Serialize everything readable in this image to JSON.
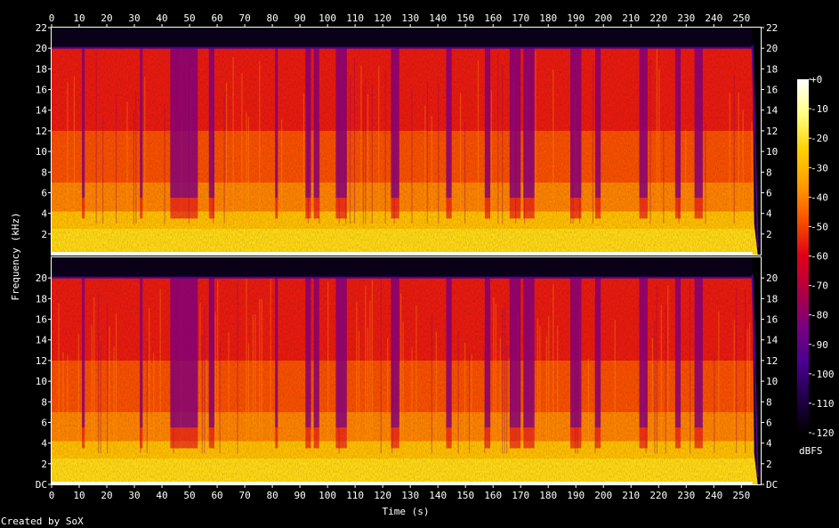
{
  "chart_data": {
    "type": "heatmap",
    "xlabel": "Time (s)",
    "ylabel": "Frequency (kHz)",
    "xlim": [
      0,
      257
    ],
    "ylim": [
      0,
      22
    ],
    "x_ticks": [
      "0",
      "10",
      "20",
      "30",
      "40",
      "50",
      "60",
      "70",
      "80",
      "90",
      "100",
      "110",
      "120",
      "130",
      "140",
      "150",
      "160",
      "170",
      "180",
      "190",
      "200",
      "210",
      "220",
      "230",
      "240",
      "250"
    ],
    "y_ticks_top": [
      "2",
      "4",
      "6",
      "8",
      "10",
      "12",
      "14",
      "16",
      "18",
      "20",
      "22"
    ],
    "y_ticks_bottom": [
      "DC",
      "2",
      "4",
      "6",
      "8",
      "10",
      "12",
      "14",
      "16",
      "18",
      "20"
    ],
    "channels": 2,
    "colorbar": {
      "unit": "dBFS",
      "range": [
        -120,
        0
      ],
      "ticks": [
        "+0",
        "-10",
        "-20",
        "-30",
        "-40",
        "-50",
        "-60",
        "-70",
        "-80",
        "-90",
        "-100",
        "-110",
        "-120"
      ],
      "stops": [
        "#000000",
        "#200048",
        "#4a0090",
        "#7a0080",
        "#b00040",
        "#e00018",
        "#f85000",
        "#ff9c00",
        "#ffd000",
        "#ffff80",
        "#ffffff"
      ]
    },
    "band_level_db": [
      {
        "freq_khz": [
          0,
          2.5
        ],
        "level": -22
      },
      {
        "freq_khz": [
          2.5,
          4.2
        ],
        "level": -28
      },
      {
        "freq_khz": [
          4.2,
          7
        ],
        "level": -40
      },
      {
        "freq_khz": [
          7,
          12
        ],
        "level": -48
      },
      {
        "freq_khz": [
          12,
          20
        ],
        "level": -56
      },
      {
        "freq_khz": [
          20,
          22
        ],
        "level": -120
      }
    ],
    "quiet_segments_s": [
      [
        11,
        12
      ],
      [
        32,
        33
      ],
      [
        43,
        47
      ],
      [
        47,
        53
      ],
      [
        57,
        59
      ],
      [
        81,
        82
      ],
      [
        92,
        94
      ],
      [
        95,
        97
      ],
      [
        103,
        107
      ],
      [
        123,
        126
      ],
      [
        143,
        145
      ],
      [
        157,
        159
      ],
      [
        166,
        170
      ],
      [
        171,
        175
      ],
      [
        188,
        192
      ],
      [
        197,
        199
      ],
      [
        213,
        216
      ],
      [
        226,
        228
      ],
      [
        233,
        236
      ]
    ],
    "end_rolloff_s": [
      254,
      257
    ]
  },
  "credit": "Created by SoX"
}
